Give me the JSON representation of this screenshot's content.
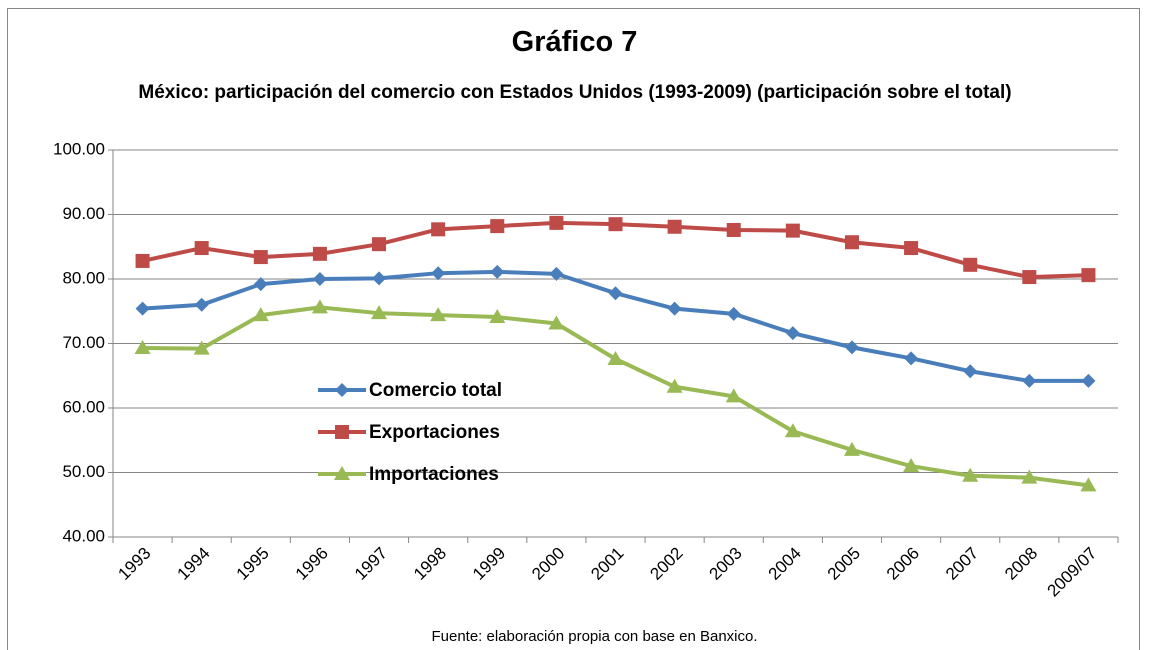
{
  "chart_data": {
    "type": "line",
    "title": "Gráfico 7",
    "subtitle": "México: participación del comercio con Estados Unidos (1993-2009) (participación sobre el total)",
    "source": "Fuente: elaboración propia con base en Banxico.",
    "categories": [
      "1993",
      "1994",
      "1995",
      "1996",
      "1997",
      "1998",
      "1999",
      "2000",
      "2001",
      "2002",
      "2003",
      "2004",
      "2005",
      "2006",
      "2007",
      "2008",
      "2009/07"
    ],
    "series": [
      {
        "name": "Comercio total",
        "color": "#4a7ebb",
        "marker": "diamond",
        "values": [
          75.4,
          76.0,
          79.2,
          80.0,
          80.1,
          80.9,
          81.1,
          80.8,
          77.8,
          75.4,
          74.6,
          71.6,
          69.4,
          67.7,
          65.7,
          64.2,
          64.2
        ]
      },
      {
        "name": "Exportaciones",
        "color": "#be4b48",
        "marker": "square",
        "values": [
          82.8,
          84.8,
          83.4,
          83.9,
          85.4,
          87.7,
          88.2,
          88.7,
          88.5,
          88.1,
          87.6,
          87.5,
          85.7,
          84.8,
          82.2,
          80.3,
          80.6
        ]
      },
      {
        "name": "Importaciones",
        "color": "#98b954",
        "marker": "triangle",
        "values": [
          69.3,
          69.2,
          74.4,
          75.6,
          74.7,
          74.4,
          74.1,
          73.1,
          67.6,
          63.3,
          61.8,
          56.4,
          53.5,
          51.0,
          49.5,
          49.2,
          48.0
        ]
      }
    ],
    "ylim": [
      40,
      100
    ],
    "yticks": [
      {
        "value": 40,
        "label": "40.00"
      },
      {
        "value": 50,
        "label": "50.00"
      },
      {
        "value": 60,
        "label": "60.00"
      },
      {
        "value": 70,
        "label": "70.00"
      },
      {
        "value": 80,
        "label": "80.00"
      },
      {
        "value": 90,
        "label": "90.00"
      },
      {
        "value": 100,
        "label": "100.00"
      }
    ],
    "grid": true,
    "legend": "center-left"
  }
}
